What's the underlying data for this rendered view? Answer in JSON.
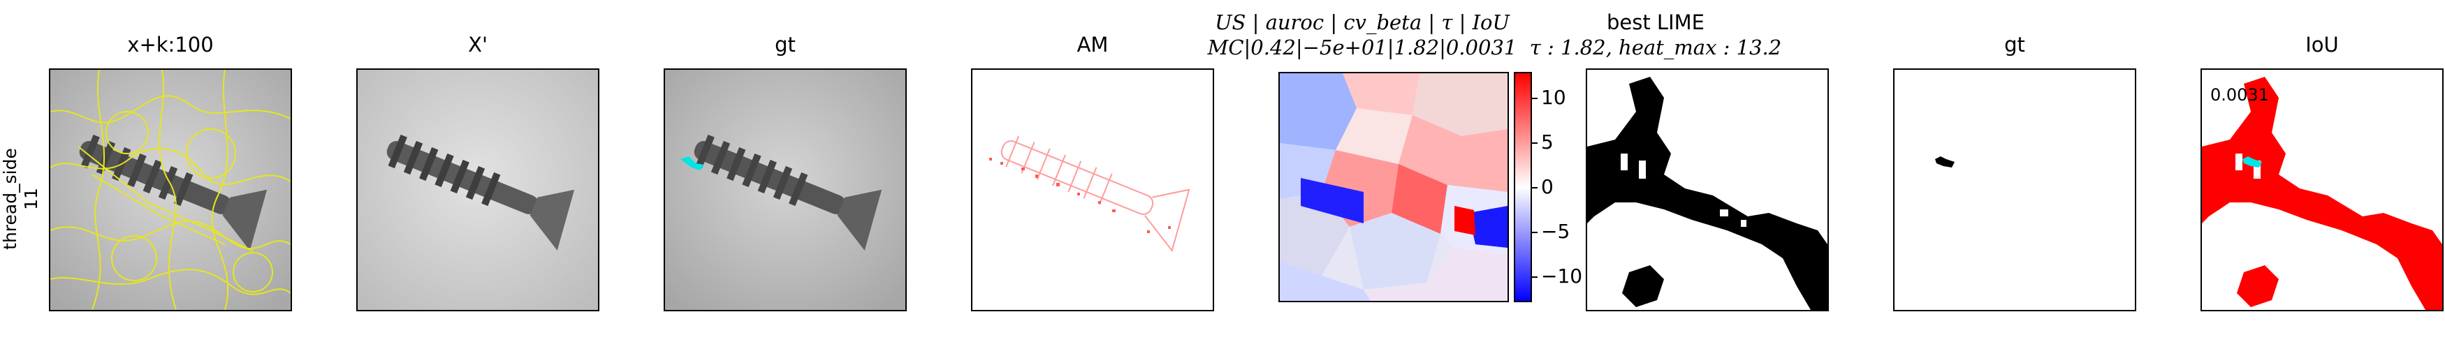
{
  "row_label": {
    "line1": "thread_side",
    "line2": "11"
  },
  "panels": [
    {
      "title": "x+k:100"
    },
    {
      "title": "X'"
    },
    {
      "title": "gt"
    },
    {
      "title": "AM"
    },
    {
      "title_line1": "US | auroc | cv_beta | τ | IoU",
      "title_line2": "MC|0.42|−5e+01|1.82|0.0031"
    },
    {
      "title_line1": "best LIME",
      "title_line2": "τ : 1.82, heat_max : 13.2"
    },
    {
      "title": "gt"
    },
    {
      "title": "IoU",
      "annotation": "0.0031"
    }
  ],
  "colorbar": {
    "ticks": [
      "10",
      "5",
      "0",
      "−5",
      "−10"
    ],
    "colors": {
      "high": "#ff0000",
      "mid": "#ffffff",
      "low": "#0000ff"
    }
  },
  "colors": {
    "contour": "#e6e61e",
    "gt_mark": "#00e5e5",
    "iou_fill": "#ff0000",
    "mask": "#000000"
  }
}
